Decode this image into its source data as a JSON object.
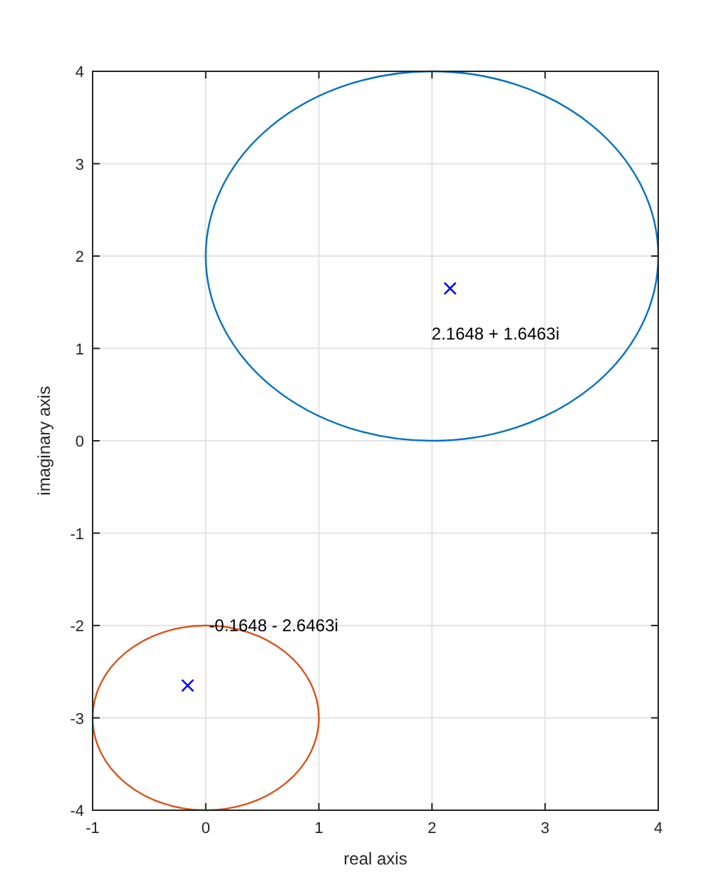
{
  "chart_data": {
    "type": "scatter",
    "xlabel": "real axis",
    "ylabel": "imaginary axis",
    "xlim": [
      -1,
      4
    ],
    "ylim": [
      -4,
      4
    ],
    "xticks": [
      -1,
      0,
      1,
      2,
      3,
      4
    ],
    "yticks": [
      -4,
      -3,
      -2,
      -1,
      0,
      1,
      2,
      3,
      4
    ],
    "grid": true,
    "marker": "cross",
    "series": [
      {
        "color": "#0000ff",
        "x": [
          2.16,
          -0.16
        ],
        "values": [
          1.65,
          -2.65
        ]
      }
    ],
    "annotations": [
      "2.1648 + 1.6463i",
      "-0.1648 - 2.6463i"
    ]
  }
}
